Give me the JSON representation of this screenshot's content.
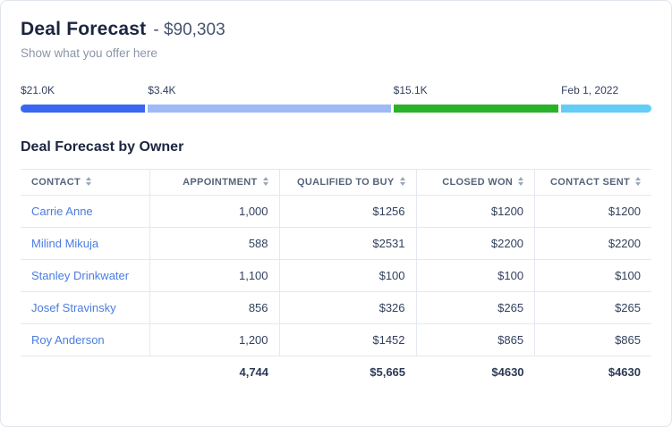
{
  "header": {
    "title": "Deal Forecast",
    "amount": "- $90,303",
    "subtitle": "Show what you offer here"
  },
  "progress": {
    "segments": [
      {
        "label": "$21.0K",
        "color": "#3a67f2",
        "width_pct": 20
      },
      {
        "label": "$3.4K",
        "color": "#9fb9f7",
        "width_pct": 39
      },
      {
        "label": "$15.1K",
        "color": "#29b229",
        "width_pct": 26.5
      },
      {
        "label": "Feb 1, 2022",
        "color": "#63cdf5",
        "width_pct": 14.5
      }
    ]
  },
  "table": {
    "section_title": "Deal Forecast by Owner",
    "columns": [
      {
        "label": "CONTACT",
        "align": "left"
      },
      {
        "label": "APPOINTMENT",
        "align": "right"
      },
      {
        "label": "QUALIFIED TO BUY",
        "align": "right"
      },
      {
        "label": "CLOSED WON",
        "align": "right"
      },
      {
        "label": "CONTACT SENT",
        "align": "right"
      }
    ],
    "rows": [
      {
        "contact": "Carrie Anne",
        "values": [
          "1,000",
          "$1256",
          "$1200",
          "$1200"
        ]
      },
      {
        "contact": "Milind Mikuja",
        "values": [
          "588",
          "$2531",
          "$2200",
          "$2200"
        ]
      },
      {
        "contact": "Stanley Drinkwater",
        "values": [
          "1,100",
          "$100",
          "$100",
          "$100"
        ]
      },
      {
        "contact": "Josef Stravinsky",
        "values": [
          "856",
          "$326",
          "$265",
          "$265"
        ]
      },
      {
        "contact": "Roy Anderson",
        "values": [
          "1,200",
          "$1452",
          "$865",
          "$865"
        ]
      }
    ],
    "totals": [
      "",
      "4,744",
      "$5,665",
      "$4630",
      "$4630"
    ]
  }
}
